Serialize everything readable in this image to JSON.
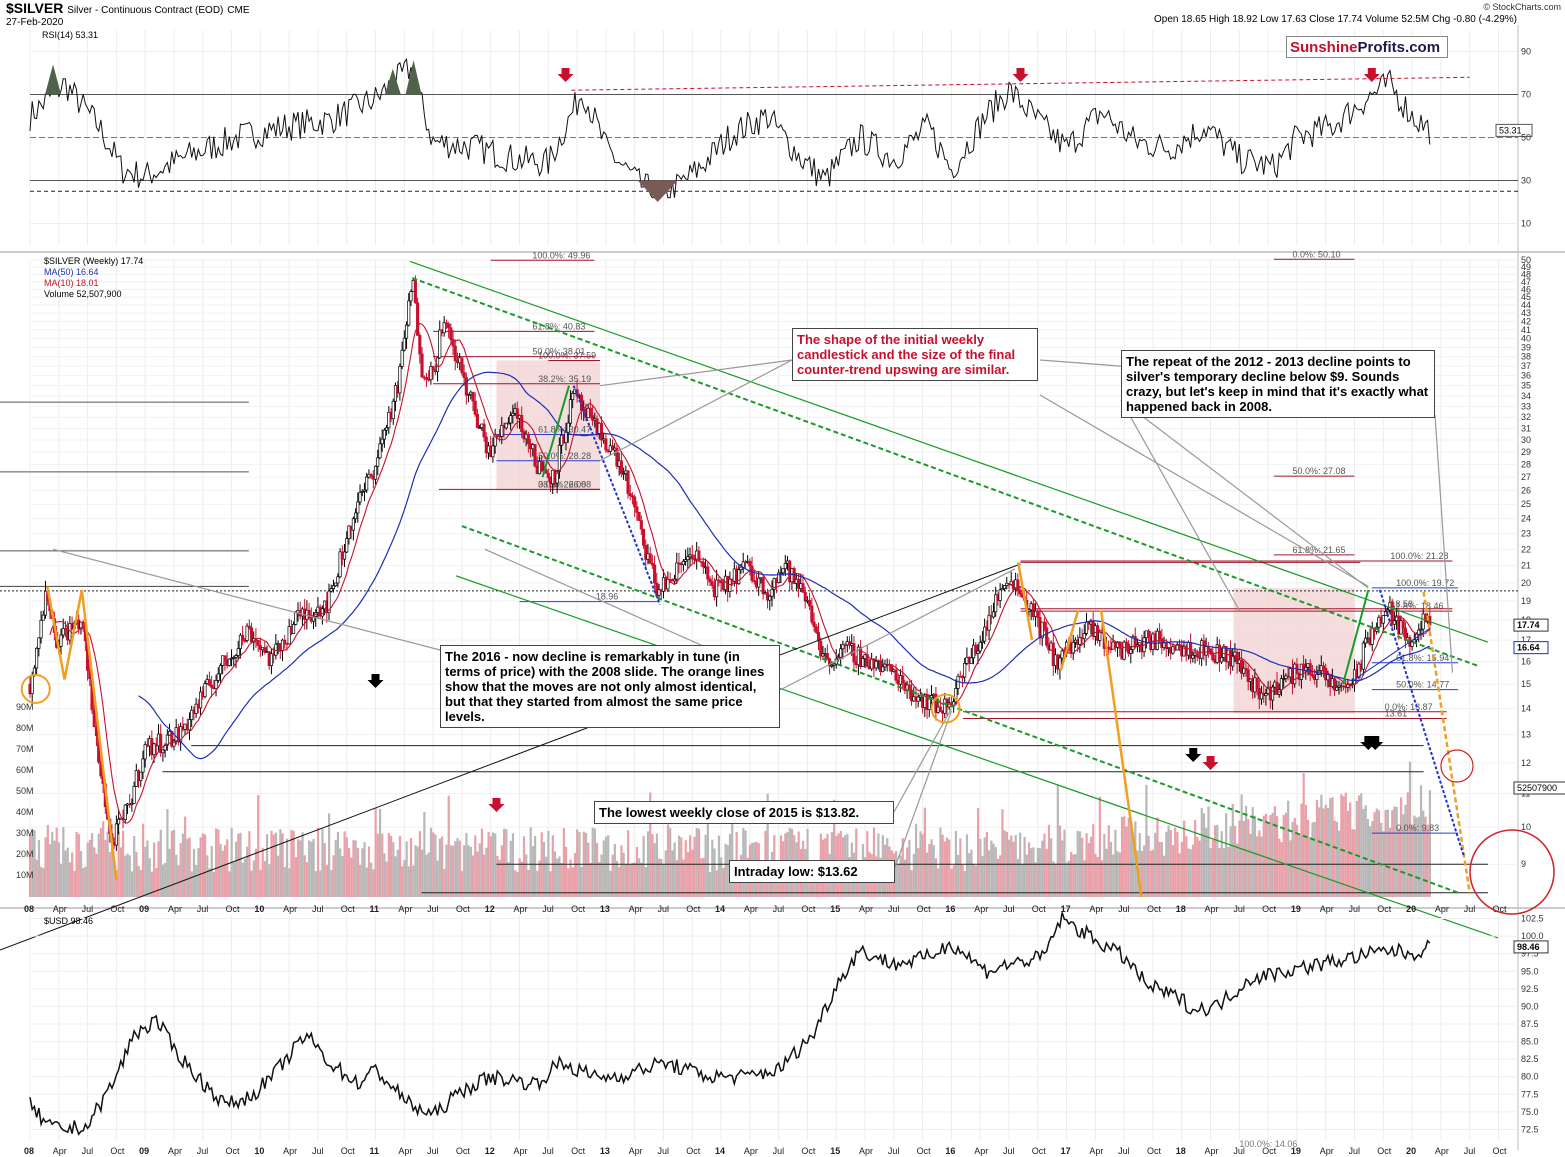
{
  "header": {
    "symbol": "$SILVER",
    "name": "Silver - Continuous Contract (EOD)",
    "exchange": "CME",
    "date": "27-Feb-2020",
    "quote": "Open 18.65  High 18.92  Low 17.63  Close 17.74  Volume 52.5M  Chg -0.80 (-4.29%)",
    "credit": "© StockCharts.com"
  },
  "logo": {
    "part1": "Sunshine",
    "part2": "Profits.com"
  },
  "panels": {
    "rsi_label": "RSI(14) 53.31",
    "price_label": "$SILVER (Weekly) 17.74",
    "ma50_label": "MA(50) 16.64",
    "ma10_label": "MA(10) 18.01",
    "volume_label": "Volume 52,507,900",
    "usd_label": "$USD 98.46"
  },
  "colors": {
    "up_candle": "#000000",
    "down_candle": "#c8102e",
    "ma50": "#1e2fb5",
    "ma10": "#c8102e",
    "trend_green": "#1a9a2a",
    "projection_orange": "#f0a020",
    "projection_blue": "#2233cc",
    "highlight_box": "#f3d5d5",
    "rsi_fill": "#4e6349",
    "annotation_red": "#c8102e"
  },
  "annotations": {
    "shape": "The shape of the initial weekly candlestick and the size of the final counter-trend upswing are similar.",
    "repeat": "The repeat of the 2012 - 2013 decline points to silver's temporary decline below $9. Sounds crazy, but let's keep in mind that it's exactly what happened back in 2008.",
    "decline": "The 2016 - now decline is remarkably in tune (in terms of price) with the 2008 slide. The orange lines show that the moves are not only almost identical, but that they started from almost the same price levels.",
    "lowest_close": "The lowest weekly close of 2015 is $13.82.",
    "intraday_low": "Intraday low: $13.62"
  },
  "chart_data": [
    {
      "type": "line",
      "title": "RSI(14) 53.31",
      "ylim": [
        0,
        100
      ],
      "yticks": [
        10,
        30,
        50,
        70,
        90
      ],
      "reference_levels": [
        70,
        50,
        30,
        25
      ],
      "last_value": 53.31,
      "last_value_label": "53.31",
      "series": [
        {
          "name": "RSI(14)",
          "x": [
            2008.0,
            2008.3,
            2008.6,
            2008.8,
            2009.0,
            2009.4,
            2009.8,
            2010.2,
            2010.6,
            2011.0,
            2011.3,
            2011.5,
            2011.9,
            2012.2,
            2012.5,
            2012.8,
            2013.0,
            2013.3,
            2013.5,
            2013.8,
            2014.1,
            2014.4,
            2014.7,
            2014.9,
            2015.2,
            2015.5,
            2015.8,
            2016.0,
            2016.3,
            2016.5,
            2016.8,
            2017.0,
            2017.3,
            2017.6,
            2017.9,
            2018.2,
            2018.5,
            2018.8,
            2019.0,
            2019.3,
            2019.6,
            2019.8,
            2020.0,
            2020.16
          ],
          "values": [
            60,
            75,
            55,
            35,
            32,
            42,
            50,
            55,
            58,
            68,
            82,
            48,
            45,
            40,
            38,
            72,
            45,
            28,
            22,
            35,
            52,
            60,
            40,
            30,
            50,
            40,
            55,
            35,
            60,
            72,
            55,
            45,
            62,
            48,
            45,
            55,
            40,
            36,
            50,
            55,
            68,
            75,
            60,
            53.31
          ]
        }
      ]
    },
    {
      "type": "candlestick",
      "title": "$SILVER (Weekly) 17.74",
      "ylim": [
        8.2,
        50
      ],
      "log_scale": true,
      "yticks": [
        9,
        10,
        11,
        12,
        13,
        14,
        15,
        16,
        17,
        18,
        19,
        20,
        21,
        22,
        23,
        24,
        25,
        26,
        27,
        28,
        29,
        30,
        31,
        32,
        33,
        34,
        35,
        36,
        37,
        38,
        39,
        40,
        41,
        42,
        43,
        44,
        45,
        46,
        47,
        48,
        49,
        50
      ],
      "xlabels": [
        "08",
        "Apr",
        "Jul",
        "Oct",
        "09",
        "Apr",
        "Jul",
        "Oct",
        "10",
        "Apr",
        "Jul",
        "Oct",
        "11",
        "Apr",
        "Jul",
        "Oct",
        "12",
        "Apr",
        "Jul",
        "Oct",
        "13",
        "Apr",
        "Jul",
        "Oct",
        "14",
        "Apr",
        "Jul",
        "Oct",
        "15",
        "Apr",
        "Jul",
        "Oct",
        "16",
        "Apr",
        "Jul",
        "Oct",
        "17",
        "Apr",
        "Jul",
        "Oct",
        "18",
        "Apr",
        "Jul",
        "Oct",
        "19",
        "Apr",
        "Jul",
        "Oct",
        "20",
        "Apr",
        "Jul",
        "Oct"
      ],
      "xrange": [
        2008.0,
        2020.85
      ],
      "price_path": {
        "x": [
          2008.0,
          2008.15,
          2008.22,
          2008.45,
          2008.55,
          2008.7,
          2008.85,
          2009.0,
          2009.3,
          2009.5,
          2009.9,
          2010.1,
          2010.3,
          2010.6,
          2010.8,
          2011.0,
          2011.2,
          2011.32,
          2011.4,
          2011.5,
          2011.58,
          2011.7,
          2011.9,
          2012.0,
          2012.2,
          2012.4,
          2012.55,
          2012.72,
          2012.9,
          2013.0,
          2013.15,
          2013.3,
          2013.45,
          2013.6,
          2013.75,
          2013.9,
          2014.0,
          2014.2,
          2014.4,
          2014.55,
          2014.75,
          2014.9,
          2015.1,
          2015.3,
          2015.5,
          2015.7,
          2015.95,
          2016.05,
          2016.25,
          2016.5,
          2016.7,
          2016.9,
          2017.0,
          2017.2,
          2017.45,
          2017.7,
          2017.95,
          2018.2,
          2018.45,
          2018.7,
          2018.9,
          2019.1,
          2019.35,
          2019.5,
          2019.65,
          2019.8,
          2019.95,
          2020.1,
          2020.16
        ],
        "close": [
          15.0,
          19.5,
          17.0,
          18.0,
          13.5,
          9.5,
          10.5,
          12.5,
          13.0,
          14.5,
          17.5,
          16.0,
          18.0,
          19.0,
          24.0,
          28.0,
          35.0,
          47.0,
          37.0,
          36.0,
          42.0,
          38.0,
          31.0,
          29.0,
          33.0,
          28.0,
          27.0,
          34.0,
          31.0,
          30.0,
          27.5,
          23.0,
          19.5,
          20.5,
          22.0,
          20.0,
          19.5,
          21.0,
          19.5,
          21.0,
          19.0,
          16.0,
          16.5,
          16.0,
          15.5,
          14.5,
          14.0,
          15.0,
          17.0,
          20.5,
          18.5,
          16.0,
          16.5,
          17.5,
          16.5,
          17.0,
          16.8,
          16.5,
          16.2,
          14.5,
          15.2,
          15.8,
          14.8,
          15.2,
          17.5,
          18.5,
          17.0,
          17.8,
          17.74
        ]
      },
      "ma50_last": 16.64,
      "ma10_last": 18.01,
      "last_close": 17.74,
      "volume_last": 52507900,
      "volume_last_label": "52507900",
      "volume_ticks": [
        "10M",
        "20M",
        "30M",
        "40M",
        "50M",
        "60M",
        "70M",
        "80M",
        "90M"
      ],
      "horizontal_levels": [
        {
          "label": "100.0%: 49.96",
          "value": 49.96
        },
        {
          "label": "0.0%: 50.10",
          "value": 50.1
        },
        {
          "label": "61.8%: 40.83",
          "value": 40.83
        },
        {
          "label": "50.0%: 38.01",
          "value": 38.01
        },
        {
          "label": "100.0%: 37.59",
          "value": 37.59
        },
        {
          "label": "38.2%: 35.19",
          "value": 35.19
        },
        {
          "label": "61.8%: 30.47",
          "value": 30.47
        },
        {
          "label": "50.0%: 28.28",
          "value": 28.28
        },
        {
          "label": "0.0%: 26.08",
          "value": 26.08
        },
        {
          "label": "38.2%: 26.08",
          "value": 26.08
        },
        {
          "label": "50.0%: 27.08",
          "value": 27.08
        },
        {
          "label": "61.8%: 21.65",
          "value": 21.65
        },
        {
          "label": "100.0%: 21.28",
          "value": 21.28
        },
        {
          "label": "100.0%: 19.72",
          "value": 19.72
        },
        {
          "label": "61.8%: 18.46",
          "value": 18.46
        },
        {
          "label": "18.58",
          "value": 18.58
        },
        {
          "label": "18.96",
          "value": 18.96
        },
        {
          "label": "61.8%: 15.94",
          "value": 15.94
        },
        {
          "label": "50.0%: 14.77",
          "value": 14.77
        },
        {
          "label": "0.0%: 13.87",
          "value": 13.87
        },
        {
          "label": "13.61",
          "value": 13.61
        },
        {
          "label": "0.0%: 9.83",
          "value": 9.83
        }
      ],
      "price_axis_labels": [
        {
          "label": "17.74",
          "value": 17.74
        },
        {
          "label": "16.64",
          "value": 16.64
        }
      ]
    },
    {
      "type": "line",
      "title": "$USD 98.46",
      "ylim": [
        71,
        103
      ],
      "yticks": [
        72.5,
        75.0,
        77.5,
        80.0,
        82.5,
        85.0,
        87.5,
        90.0,
        92.5,
        95.0,
        97.5,
        100.0,
        102.5
      ],
      "last_value": 98.46,
      "last_value_label": "98.46",
      "bottom_label": "100.0%: 14.06",
      "series": [
        {
          "name": "$USD",
          "x": [
            2008.0,
            2008.15,
            2008.3,
            2008.5,
            2008.75,
            2008.9,
            2009.1,
            2009.25,
            2009.45,
            2009.7,
            2009.9,
            2010.1,
            2010.4,
            2010.6,
            2010.85,
            2011.0,
            2011.3,
            2011.5,
            2011.75,
            2012.0,
            2012.4,
            2012.6,
            2012.9,
            2013.1,
            2013.5,
            2013.9,
            2014.2,
            2014.5,
            2014.8,
            2015.0,
            2015.2,
            2015.5,
            2015.8,
            2016.0,
            2016.3,
            2016.5,
            2016.8,
            2016.95,
            2017.2,
            2017.5,
            2017.7,
            2018.0,
            2018.1,
            2018.3,
            2018.6,
            2018.9,
            2019.2,
            2019.5,
            2019.8,
            2020.0,
            2020.16
          ],
          "values": [
            76,
            73,
            72.5,
            73,
            80,
            86,
            88,
            84,
            80,
            76,
            77,
            80,
            86,
            82,
            79,
            81,
            76,
            74.5,
            78,
            80,
            79,
            82,
            80,
            80,
            82,
            80,
            80,
            81,
            86,
            93,
            98,
            96,
            97,
            99,
            95,
            96,
            97,
            102.5,
            100,
            97,
            93,
            91,
            89.5,
            90,
            94,
            95,
            96,
            97,
            98,
            97.5,
            98.46
          ]
        }
      ]
    }
  ]
}
